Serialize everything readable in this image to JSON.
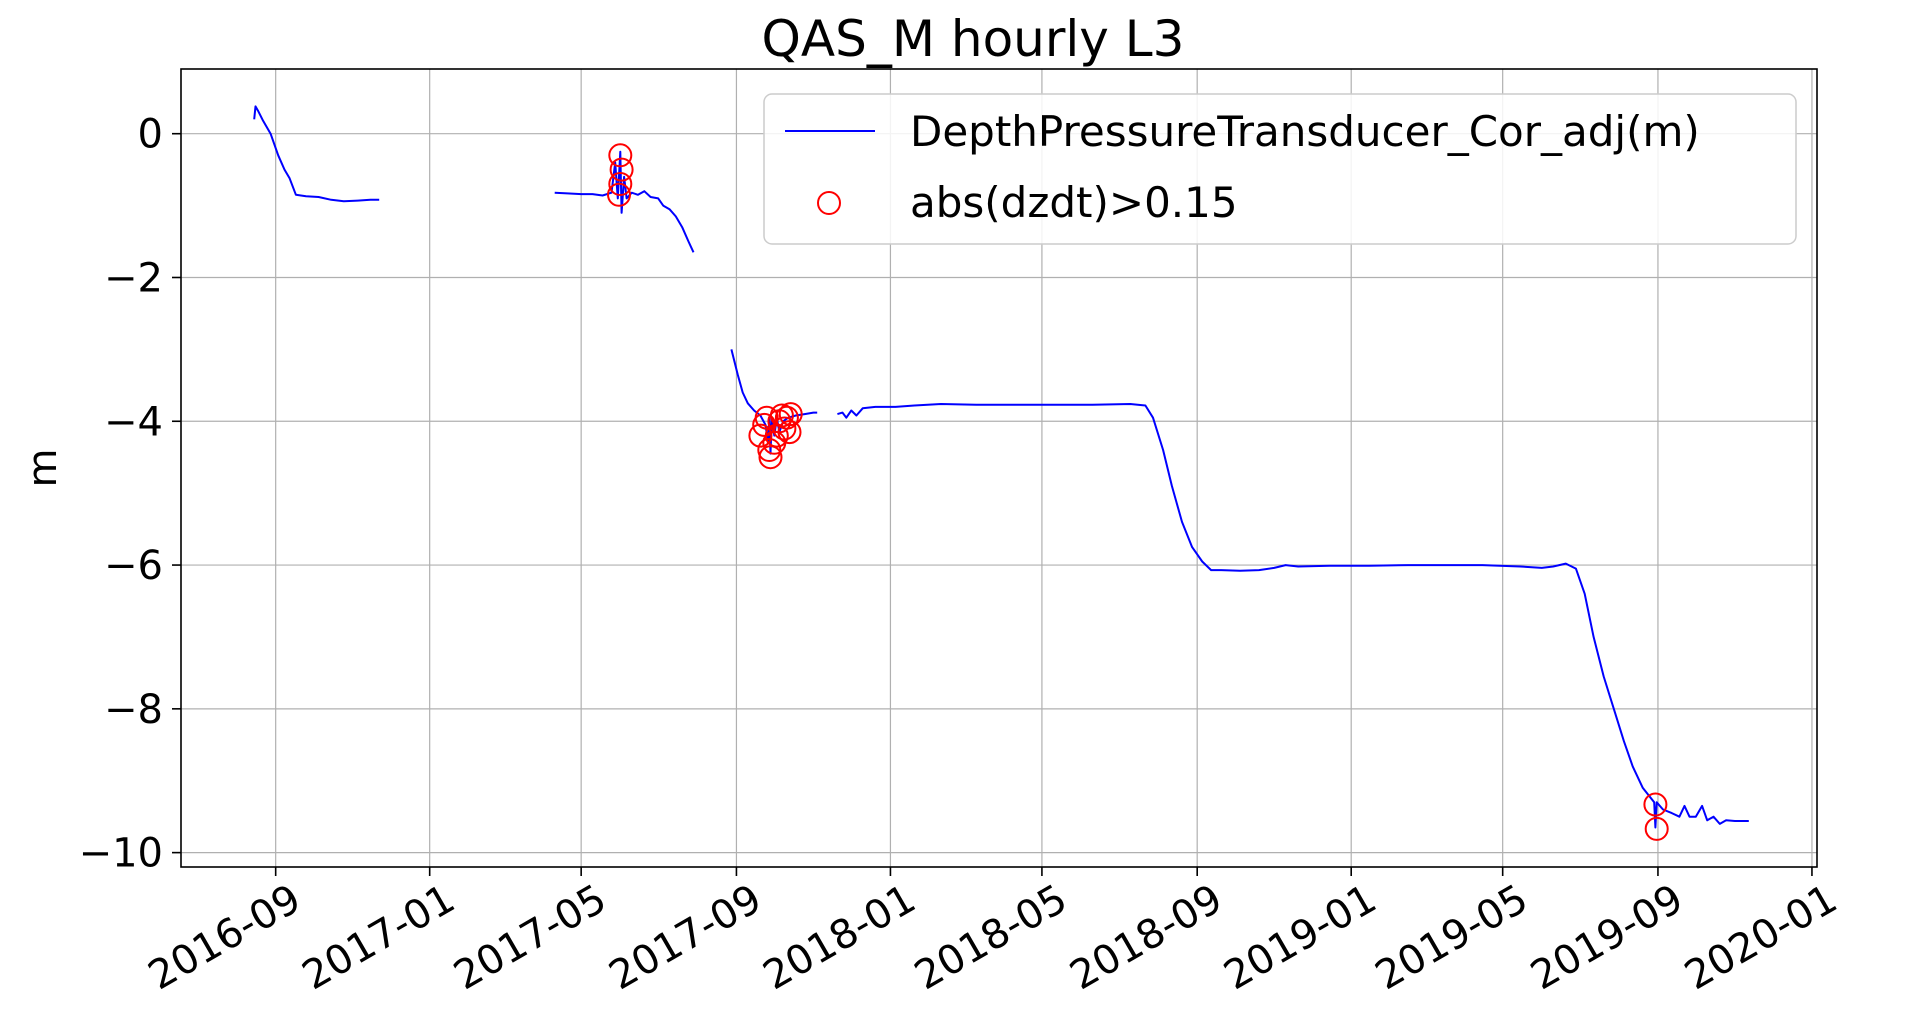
{
  "chart_data": {
    "type": "line",
    "title": "QAS_M hourly L3",
    "xlabel": "",
    "ylabel": "m",
    "x_ticks": [
      "2016-09",
      "2017-01",
      "2017-05",
      "2017-09",
      "2018-01",
      "2018-05",
      "2018-09",
      "2019-01",
      "2019-05",
      "2019-09",
      "2020-01"
    ],
    "y_ticks": [
      "0",
      "−2",
      "−4",
      "−6",
      "−8",
      "−10"
    ],
    "ylim": [
      -10.2,
      0.9
    ],
    "xlim": [
      "2016-06-18",
      "2020-01-05"
    ],
    "grid": true,
    "legend_position": "top-right",
    "colors": {
      "line": "#0000ff",
      "marker": "#ff0000"
    },
    "series": [
      {
        "name": "DepthPressureTransducer_Cor_adj(m)",
        "style": "line",
        "segments": [
          [
            [
              "2016-08-15",
              0.2
            ],
            [
              "2016-08-16",
              0.38
            ],
            [
              "2016-08-18",
              0.32
            ],
            [
              "2016-08-22",
              0.18
            ],
            [
              "2016-08-28",
              0.0
            ],
            [
              "2016-09-03",
              -0.3
            ],
            [
              "2016-09-08",
              -0.5
            ],
            [
              "2016-09-12",
              -0.62
            ],
            [
              "2016-09-17",
              -0.85
            ],
            [
              "2016-09-25",
              -0.87
            ],
            [
              "2016-10-05",
              -0.88
            ],
            [
              "2016-10-15",
              -0.92
            ],
            [
              "2016-10-25",
              -0.94
            ],
            [
              "2016-11-05",
              -0.93
            ],
            [
              "2016-11-15",
              -0.92
            ],
            [
              "2016-11-22",
              -0.92
            ]
          ],
          [
            [
              "2017-04-10",
              -0.82
            ],
            [
              "2017-04-20",
              -0.83
            ],
            [
              "2017-05-01",
              -0.84
            ],
            [
              "2017-05-10",
              -0.84
            ],
            [
              "2017-05-18",
              -0.86
            ],
            [
              "2017-05-25",
              -0.82
            ],
            [
              "2017-05-28",
              -0.4
            ],
            [
              "2017-05-30",
              -0.9
            ],
            [
              "2017-06-01",
              -0.25
            ],
            [
              "2017-06-02",
              -1.1
            ],
            [
              "2017-06-04",
              -0.6
            ],
            [
              "2017-06-06",
              -0.9
            ],
            [
              "2017-06-10",
              -0.82
            ],
            [
              "2017-06-15",
              -0.85
            ],
            [
              "2017-06-20",
              -0.8
            ],
            [
              "2017-06-25",
              -0.88
            ],
            [
              "2017-07-01",
              -0.9
            ],
            [
              "2017-07-05",
              -1.0
            ],
            [
              "2017-07-10",
              -1.05
            ],
            [
              "2017-07-15",
              -1.15
            ],
            [
              "2017-07-20",
              -1.3
            ],
            [
              "2017-07-25",
              -1.5
            ],
            [
              "2017-07-29",
              -1.65
            ]
          ],
          [
            [
              "2017-08-28",
              -3.0
            ],
            [
              "2017-09-02",
              -3.35
            ],
            [
              "2017-09-06",
              -3.6
            ],
            [
              "2017-09-10",
              -3.75
            ],
            [
              "2017-09-15",
              -3.85
            ],
            [
              "2017-09-20",
              -3.92
            ],
            [
              "2017-09-24",
              -4.05
            ],
            [
              "2017-09-26",
              -4.3
            ],
            [
              "2017-09-27",
              -3.95
            ],
            [
              "2017-09-28",
              -4.45
            ],
            [
              "2017-09-29",
              -3.95
            ],
            [
              "2017-10-01",
              -4.2
            ],
            [
              "2017-10-03",
              -3.95
            ],
            [
              "2017-10-05",
              -4.15
            ],
            [
              "2017-10-08",
              -4.0
            ],
            [
              "2017-10-12",
              -3.95
            ],
            [
              "2017-10-18",
              -3.92
            ],
            [
              "2017-10-25",
              -3.9
            ],
            [
              "2017-11-01",
              -3.88
            ],
            [
              "2017-11-04",
              -3.88
            ]
          ],
          [
            [
              "2017-11-20",
              -3.9
            ],
            [
              "2017-11-24",
              -3.88
            ],
            [
              "2017-11-27",
              -3.95
            ],
            [
              "2017-12-01",
              -3.85
            ],
            [
              "2017-12-05",
              -3.92
            ],
            [
              "2017-12-10",
              -3.82
            ],
            [
              "2017-12-20",
              -3.8
            ],
            [
              "2018-01-05",
              -3.8
            ],
            [
              "2018-01-20",
              -3.78
            ],
            [
              "2018-02-10",
              -3.76
            ],
            [
              "2018-03-10",
              -3.77
            ],
            [
              "2018-04-10",
              -3.77
            ],
            [
              "2018-05-10",
              -3.77
            ],
            [
              "2018-06-10",
              -3.77
            ],
            [
              "2018-07-10",
              -3.76
            ],
            [
              "2018-07-22",
              -3.78
            ],
            [
              "2018-07-28",
              -3.95
            ],
            [
              "2018-08-05",
              -4.4
            ],
            [
              "2018-08-12",
              -4.9
            ],
            [
              "2018-08-20",
              -5.4
            ],
            [
              "2018-08-28",
              -5.75
            ],
            [
              "2018-09-05",
              -5.95
            ],
            [
              "2018-09-12",
              -6.07
            ],
            [
              "2018-09-20",
              -6.07
            ],
            [
              "2018-10-05",
              -6.08
            ],
            [
              "2018-10-20",
              -6.07
            ],
            [
              "2018-11-01",
              -6.04
            ],
            [
              "2018-11-10",
              -6.0
            ],
            [
              "2018-11-20",
              -6.02
            ],
            [
              "2018-12-15",
              -6.01
            ],
            [
              "2019-01-15",
              -6.01
            ],
            [
              "2019-02-15",
              -6.0
            ],
            [
              "2019-03-15",
              -6.0
            ],
            [
              "2019-04-15",
              -6.0
            ],
            [
              "2019-05-15",
              -6.02
            ],
            [
              "2019-06-01",
              -6.04
            ],
            [
              "2019-06-10",
              -6.02
            ],
            [
              "2019-06-20",
              -5.98
            ],
            [
              "2019-06-28",
              -6.05
            ],
            [
              "2019-07-05",
              -6.4
            ],
            [
              "2019-07-12",
              -7.0
            ],
            [
              "2019-07-20",
              -7.55
            ],
            [
              "2019-07-28",
              -8.0
            ],
            [
              "2019-08-05",
              -8.45
            ],
            [
              "2019-08-12",
              -8.8
            ],
            [
              "2019-08-20",
              -9.1
            ],
            [
              "2019-08-29",
              -9.3
            ],
            [
              "2019-08-30",
              -9.65
            ],
            [
              "2019-08-31",
              -9.3
            ],
            [
              "2019-09-05",
              -9.4
            ],
            [
              "2019-09-12",
              -9.45
            ],
            [
              "2019-09-18",
              -9.5
            ],
            [
              "2019-09-22",
              -9.35
            ],
            [
              "2019-09-26",
              -9.5
            ],
            [
              "2019-10-01",
              -9.5
            ],
            [
              "2019-10-06",
              -9.35
            ],
            [
              "2019-10-10",
              -9.55
            ],
            [
              "2019-10-15",
              -9.5
            ],
            [
              "2019-10-20",
              -9.6
            ],
            [
              "2019-10-25",
              -9.55
            ],
            [
              "2019-11-01",
              -9.56
            ],
            [
              "2019-11-12",
              -9.56
            ]
          ]
        ]
      },
      {
        "name": "abs(dzdt)>0.15",
        "style": "scatter",
        "points": [
          [
            "2017-06-01",
            -0.3
          ],
          [
            "2017-06-02",
            -0.5
          ],
          [
            "2017-06-01",
            -0.7
          ],
          [
            "2017-05-31",
            -0.85
          ],
          [
            "2017-09-20",
            -4.2
          ],
          [
            "2017-09-23",
            -4.05
          ],
          [
            "2017-09-25",
            -3.95
          ],
          [
            "2017-09-27",
            -4.4
          ],
          [
            "2017-09-28",
            -4.5
          ],
          [
            "2017-10-01",
            -4.3
          ],
          [
            "2017-10-03",
            -4.2
          ],
          [
            "2017-10-05",
            -4.0
          ],
          [
            "2017-10-07",
            -3.92
          ],
          [
            "2017-10-09",
            -4.1
          ],
          [
            "2017-10-11",
            -3.95
          ],
          [
            "2017-10-13",
            -4.15
          ],
          [
            "2017-10-14",
            -3.9
          ],
          [
            "2019-08-30",
            -9.33
          ],
          [
            "2019-08-31",
            -9.67
          ]
        ]
      }
    ]
  }
}
